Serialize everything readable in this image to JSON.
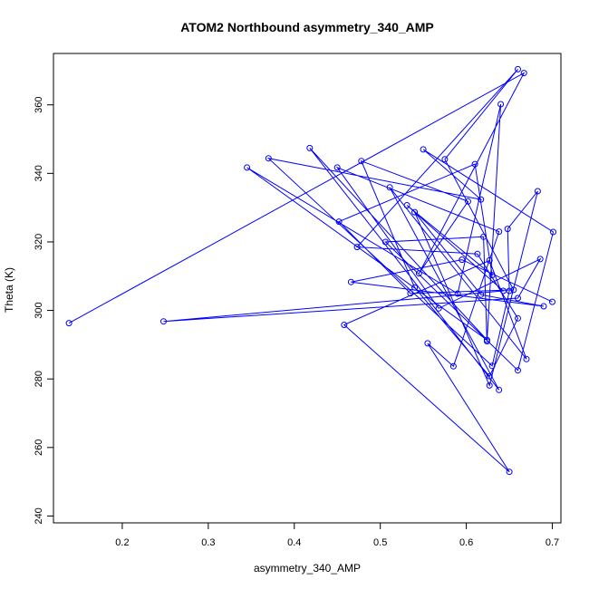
{
  "chart_data": {
    "type": "line",
    "title": "ATOM2 Northbound asymmetry_340_AMP",
    "xlabel": "asymmetry_340_AMP",
    "ylabel": "Theta (K)",
    "xlim": [
      0.12,
      0.71
    ],
    "ylim": [
      238,
      375
    ],
    "xticks": [
      0.2,
      0.3,
      0.4,
      0.5,
      0.6,
      0.7
    ],
    "yticks": [
      240,
      260,
      280,
      300,
      320,
      340,
      360
    ],
    "marker": "open-circle",
    "grid": false,
    "color": "#0000ff",
    "x": [
      0.138,
      0.667,
      0.545,
      0.602,
      0.478,
      0.54,
      0.627,
      0.66,
      0.613,
      0.473,
      0.66,
      0.575,
      0.655,
      0.535,
      0.452,
      0.61,
      0.63,
      0.531,
      0.643,
      0.248,
      0.66,
      0.686,
      0.568,
      0.45,
      0.638,
      0.585,
      0.555,
      0.65,
      0.458,
      0.627,
      0.67,
      0.511,
      0.638,
      0.418,
      0.624,
      0.345,
      0.59,
      0.64,
      0.624,
      0.62,
      0.506,
      0.66,
      0.701,
      0.55,
      0.617,
      0.37,
      0.63,
      0.65,
      0.648,
      0.683,
      0.627,
      0.54,
      0.617,
      0.69,
      0.466,
      0.595,
      0.7
    ],
    "y": [
      296.3,
      369.3,
      310.8,
      331.8,
      343.6,
      306.7,
      280.8,
      297.7,
      316.5,
      318.5,
      370.4,
      344.1,
      306.0,
      305.0,
      325.9,
      342.7,
      310.3,
      330.7,
      305.7,
      296.8,
      303.6,
      315.0,
      300.6,
      341.7,
      323.0,
      283.7,
      290.4,
      252.9,
      295.8,
      314.6,
      285.8,
      335.9,
      276.8,
      347.4,
      291.4,
      341.7,
      304.9,
      360.2,
      291.0,
      321.5,
      320.0,
      282.5,
      322.9,
      347.0,
      332.4,
      344.4,
      283.8,
      305.7,
      323.8,
      334.8,
      278.1,
      328.7,
      304.6,
      301.2,
      308.3,
      314.8,
      302.5
    ]
  }
}
